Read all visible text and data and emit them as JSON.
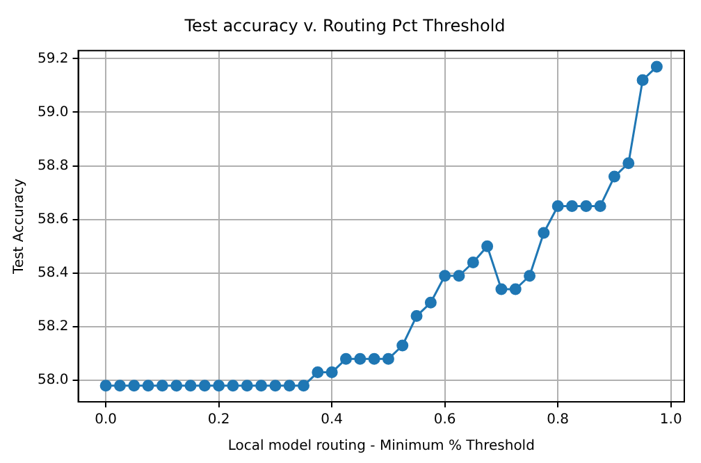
{
  "chart_data": {
    "type": "line",
    "title": "Test accuracy v. Routing Pct Threshold",
    "xlabel": "Local model routing - Minimum % Threshold",
    "ylabel": "Test Accuracy",
    "x": [
      0,
      0.025,
      0.05,
      0.075,
      0.1,
      0.125,
      0.15,
      0.175,
      0.2,
      0.225,
      0.25,
      0.275,
      0.3,
      0.325,
      0.35,
      0.375,
      0.4,
      0.425,
      0.45,
      0.475,
      0.5,
      0.525,
      0.55,
      0.575,
      0.6,
      0.625,
      0.65,
      0.675,
      0.7,
      0.725,
      0.75,
      0.775,
      0.8,
      0.825,
      0.85,
      0.875,
      0.9,
      0.925,
      0.95,
      0.975
    ],
    "series": [
      {
        "color": "#1f77b4",
        "values": [
          57.98,
          57.98,
          57.98,
          57.98,
          57.98,
          57.98,
          57.98,
          57.98,
          57.98,
          57.98,
          57.98,
          57.98,
          57.98,
          57.98,
          57.98,
          58.03,
          58.03,
          58.08,
          58.08,
          58.08,
          58.08,
          58.13,
          58.24,
          58.29,
          58.39,
          58.39,
          58.44,
          58.5,
          58.34,
          58.34,
          58.39,
          58.55,
          58.65,
          58.65,
          58.65,
          58.65,
          58.76,
          58.81,
          59.12,
          59.17
        ]
      }
    ],
    "xlim": [
      -0.04875,
      1.02375
    ],
    "xticks": [
      {
        "value": 0,
        "label": "0.0"
      },
      0.2,
      0.4,
      0.6,
      0.8,
      {
        "value": 1,
        "label": "1.0"
      }
    ],
    "ylim": [
      57.92,
      59.23
    ],
    "yticks": [
      {
        "value": 58,
        "label": "58.0"
      },
      58.2,
      58.4,
      58.6,
      58.8,
      {
        "value": 59,
        "label": "59.0"
      },
      59.2
    ],
    "grid": true,
    "marker": "circle",
    "line_style": "solid",
    "legend": false
  }
}
